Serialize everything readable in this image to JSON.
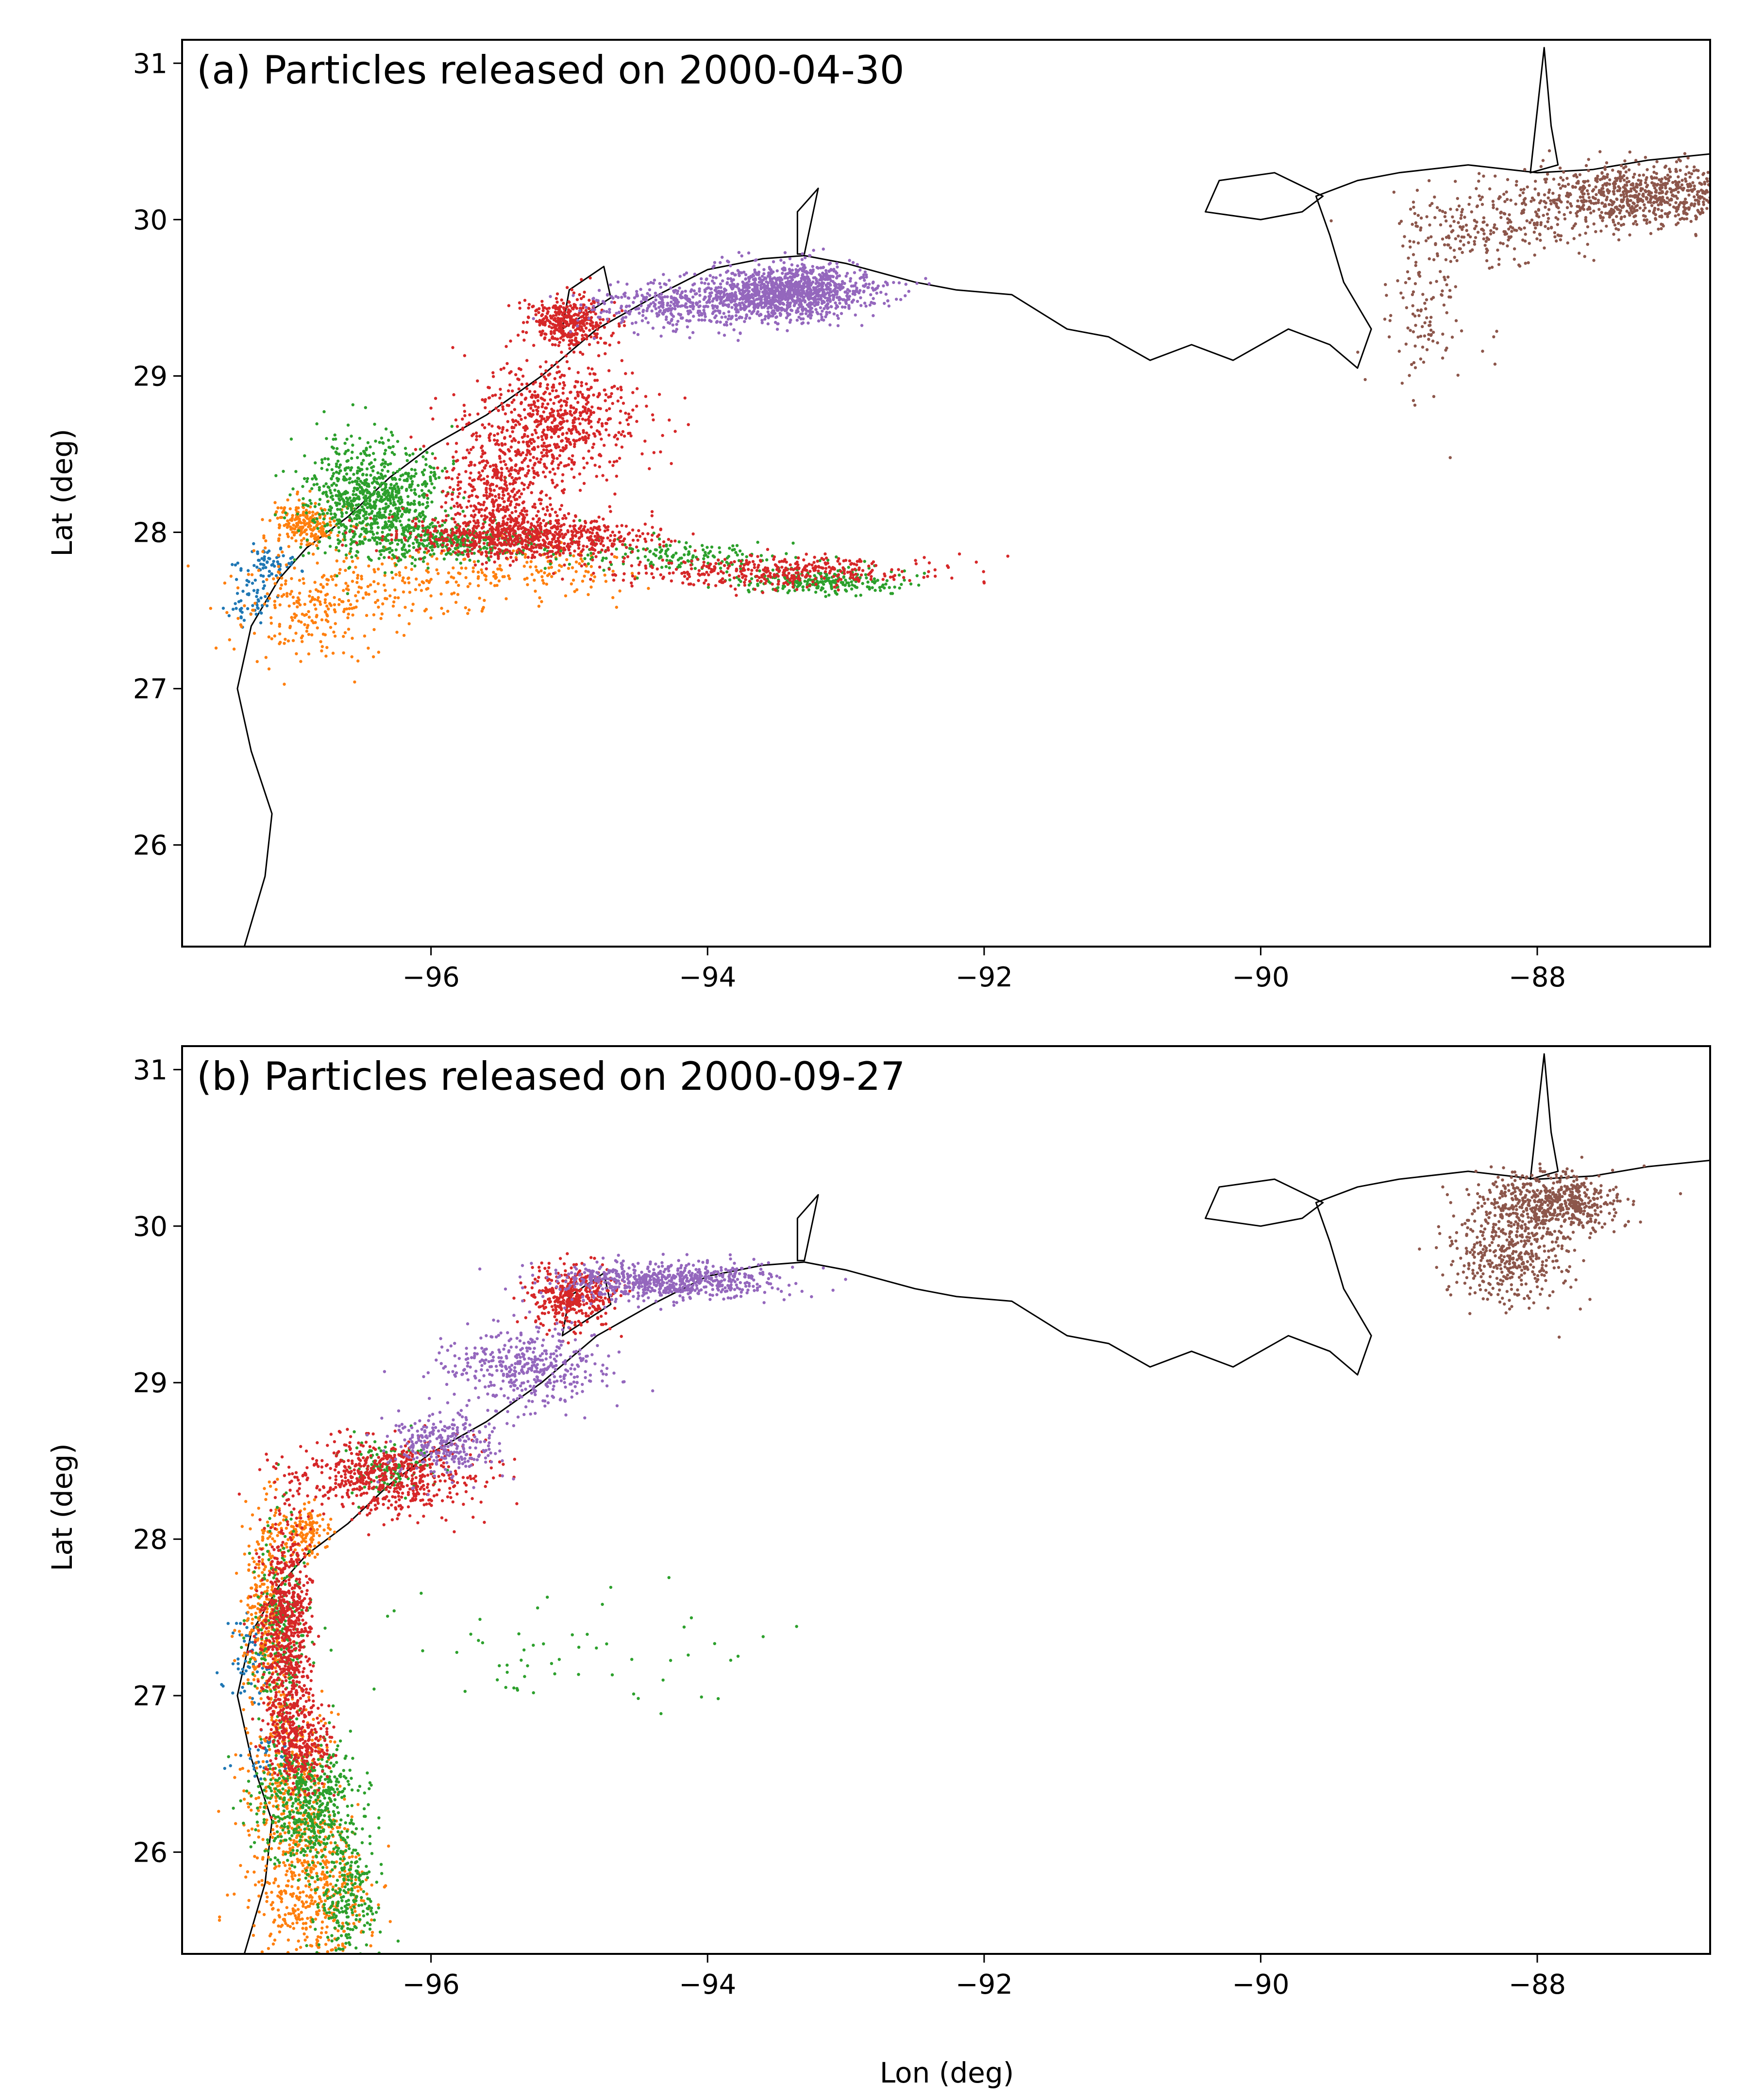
{
  "chart_data": [
    {
      "type": "scatter",
      "title": "(a) Particles released on 2000-04-30",
      "xlabel": "",
      "ylabel": "Lat (deg)",
      "xlim": [
        -97.8,
        -86.75
      ],
      "ylim": [
        25.35,
        31.15
      ],
      "xticks": [
        -96,
        -94,
        -92,
        -90,
        -88
      ],
      "yticks": [
        26,
        27,
        28,
        29,
        30,
        31
      ],
      "xtick_labels": [
        "−96",
        "−94",
        "−92",
        "−90",
        "−88"
      ],
      "ytick_labels": [
        "26",
        "27",
        "28",
        "29",
        "30",
        "31"
      ],
      "grid": false,
      "series": [
        {
          "color": "#1f77b4",
          "n": 120,
          "seed": 11,
          "clusters": [
            {
              "x": -97.3,
              "y": 27.6,
              "sx": 0.08,
              "sy": 0.12,
              "w": 0.5
            },
            {
              "x": -97.15,
              "y": 27.8,
              "sx": 0.1,
              "sy": 0.05,
              "w": 0.5
            }
          ]
        },
        {
          "color": "#ff7f0e",
          "n": 700,
          "seed": 12,
          "clusters": [
            {
              "x": -96.9,
              "y": 28.05,
              "sx": 0.12,
              "sy": 0.08,
              "w": 0.3
            },
            {
              "x": -96.9,
              "y": 27.5,
              "sx": 0.25,
              "sy": 0.18,
              "w": 0.3
            },
            {
              "x": -96.2,
              "y": 27.65,
              "sx": 0.35,
              "sy": 0.12,
              "w": 0.2
            },
            {
              "x": -95.2,
              "y": 27.75,
              "sx": 0.4,
              "sy": 0.1,
              "w": 0.2
            }
          ]
        },
        {
          "color": "#2ca02c",
          "n": 1600,
          "seed": 13,
          "clusters": [
            {
              "x": -96.4,
              "y": 28.2,
              "sx": 0.25,
              "sy": 0.18,
              "w": 0.55
            },
            {
              "x": -95.8,
              "y": 27.95,
              "sx": 0.35,
              "sy": 0.06,
              "w": 0.2
            },
            {
              "x": -94.2,
              "y": 27.85,
              "sx": 0.4,
              "sy": 0.05,
              "w": 0.1
            },
            {
              "x": -93.2,
              "y": 27.68,
              "sx": 0.3,
              "sy": 0.04,
              "w": 0.15
            }
          ]
        },
        {
          "color": "#d62728",
          "n": 2600,
          "seed": 14,
          "clusters": [
            {
              "x": -95.0,
              "y": 29.35,
              "sx": 0.15,
              "sy": 0.08,
              "w": 0.15
            },
            {
              "x": -95.1,
              "y": 28.7,
              "sx": 0.3,
              "sy": 0.2,
              "w": 0.25
            },
            {
              "x": -95.5,
              "y": 28.3,
              "sx": 0.2,
              "sy": 0.2,
              "w": 0.15
            },
            {
              "x": -95.3,
              "y": 27.97,
              "sx": 0.45,
              "sy": 0.07,
              "w": 0.3
            },
            {
              "x": -93.5,
              "y": 27.75,
              "sx": 0.6,
              "sy": 0.05,
              "w": 0.15
            }
          ]
        },
        {
          "color": "#9467bd",
          "n": 1600,
          "seed": 15,
          "clusters": [
            {
              "x": -93.4,
              "y": 29.55,
              "sx": 0.3,
              "sy": 0.08,
              "w": 0.7
            },
            {
              "x": -94.1,
              "y": 29.45,
              "sx": 0.4,
              "sy": 0.08,
              "w": 0.3
            }
          ]
        },
        {
          "color": "#8c564b",
          "n": 1200,
          "seed": 16,
          "clusters": [
            {
              "x": -87.2,
              "y": 30.15,
              "sx": 0.45,
              "sy": 0.1,
              "w": 0.7
            },
            {
              "x": -88.3,
              "y": 29.95,
              "sx": 0.35,
              "sy": 0.12,
              "w": 0.2
            },
            {
              "x": -88.8,
              "y": 29.4,
              "sx": 0.15,
              "sy": 0.3,
              "w": 0.1
            }
          ]
        }
      ]
    },
    {
      "type": "scatter",
      "title": "(b) Particles released on 2000-09-27",
      "xlabel": "Lon (deg)",
      "ylabel": "Lat (deg)",
      "xlim": [
        -97.8,
        -86.75
      ],
      "ylim": [
        25.35,
        31.15
      ],
      "xticks": [
        -96,
        -94,
        -92,
        -90,
        -88
      ],
      "yticks": [
        26,
        27,
        28,
        29,
        30,
        31
      ],
      "xtick_labels": [
        "−96",
        "−94",
        "−92",
        "−90",
        "−88"
      ],
      "ytick_labels": [
        "26",
        "27",
        "28",
        "29",
        "30",
        "31"
      ],
      "grid": false,
      "series": [
        {
          "color": "#1f77b4",
          "n": 100,
          "seed": 21,
          "clusters": [
            {
              "x": -97.3,
              "y": 27.2,
              "sx": 0.08,
              "sy": 0.15,
              "w": 0.6
            },
            {
              "x": -97.2,
              "y": 26.6,
              "sx": 0.1,
              "sy": 0.1,
              "w": 0.4
            }
          ]
        },
        {
          "color": "#ff7f0e",
          "n": 1300,
          "seed": 22,
          "clusters": [
            {
              "x": -97.2,
              "y": 27.5,
              "sx": 0.08,
              "sy": 0.35,
              "w": 0.25
            },
            {
              "x": -97.0,
              "y": 26.4,
              "sx": 0.15,
              "sy": 0.3,
              "w": 0.3
            },
            {
              "x": -96.85,
              "y": 25.75,
              "sx": 0.2,
              "sy": 0.25,
              "w": 0.35
            },
            {
              "x": -96.9,
              "y": 28.05,
              "sx": 0.1,
              "sy": 0.08,
              "w": 0.1
            }
          ]
        },
        {
          "color": "#2ca02c",
          "n": 1200,
          "seed": 23,
          "clusters": [
            {
              "x": -97.1,
              "y": 27.4,
              "sx": 0.1,
              "sy": 0.35,
              "w": 0.2
            },
            {
              "x": -96.9,
              "y": 26.3,
              "sx": 0.18,
              "sy": 0.2,
              "w": 0.45
            },
            {
              "x": -96.6,
              "y": 25.7,
              "sx": 0.12,
              "sy": 0.2,
              "w": 0.2
            },
            {
              "x": -96.3,
              "y": 28.45,
              "sx": 0.15,
              "sy": 0.1,
              "w": 0.1
            },
            {
              "x": -95.2,
              "y": 27.3,
              "sx": 0.7,
              "sy": 0.2,
              "w": 0.05
            }
          ]
        },
        {
          "color": "#d62728",
          "n": 2000,
          "seed": 24,
          "clusters": [
            {
              "x": -95.0,
              "y": 29.55,
              "sx": 0.15,
              "sy": 0.1,
              "w": 0.2
            },
            {
              "x": -96.3,
              "y": 28.4,
              "sx": 0.35,
              "sy": 0.12,
              "w": 0.3
            },
            {
              "x": -97.05,
              "y": 27.4,
              "sx": 0.1,
              "sy": 0.35,
              "w": 0.35
            },
            {
              "x": -96.95,
              "y": 26.7,
              "sx": 0.12,
              "sy": 0.15,
              "w": 0.15
            }
          ]
        },
        {
          "color": "#9467bd",
          "n": 1400,
          "seed": 25,
          "clusters": [
            {
              "x": -94.3,
              "y": 29.65,
              "sx": 0.4,
              "sy": 0.06,
              "w": 0.5
            },
            {
              "x": -95.3,
              "y": 29.1,
              "sx": 0.3,
              "sy": 0.12,
              "w": 0.3
            },
            {
              "x": -95.9,
              "y": 28.6,
              "sx": 0.2,
              "sy": 0.1,
              "w": 0.2
            }
          ]
        },
        {
          "color": "#8c564b",
          "n": 1000,
          "seed": 26,
          "clusters": [
            {
              "x": -87.9,
              "y": 30.15,
              "sx": 0.25,
              "sy": 0.1,
              "w": 0.6
            },
            {
              "x": -88.2,
              "y": 29.8,
              "sx": 0.2,
              "sy": 0.15,
              "w": 0.4
            }
          ]
        }
      ]
    }
  ]
}
